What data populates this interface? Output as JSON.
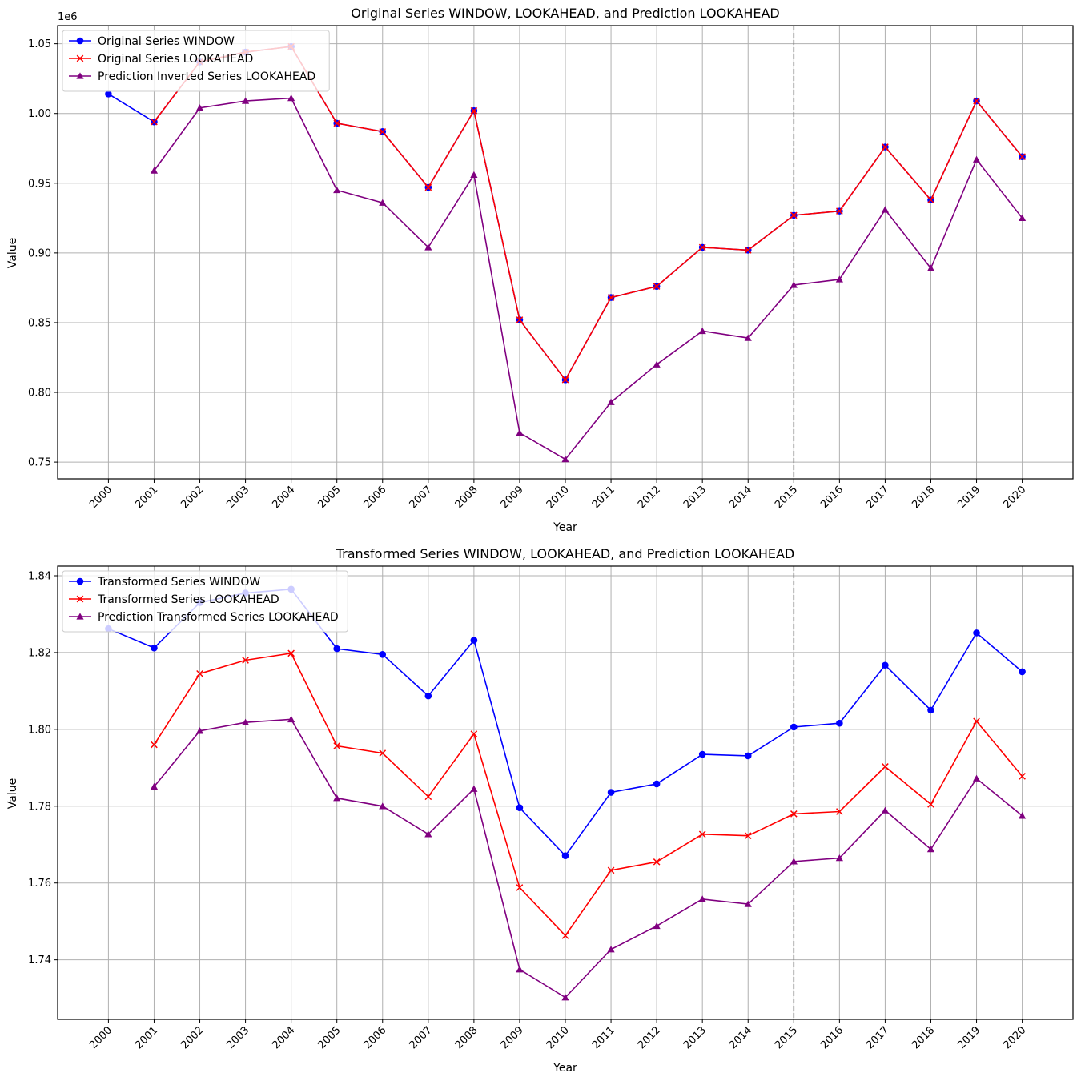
{
  "chart_data": [
    {
      "type": "line",
      "title": "Original Series WINDOW, LOOKAHEAD, and Prediction LOOKAHEAD",
      "xlabel": "Year",
      "ylabel": "Value",
      "y_offset_label": "1e6",
      "y_scale": 1000000,
      "x": [
        "2000",
        "2001",
        "2002",
        "2003",
        "2004",
        "2005",
        "2006",
        "2007",
        "2008",
        "2009",
        "2010",
        "2011",
        "2012",
        "2013",
        "2014",
        "2015",
        "2016",
        "2017",
        "2018",
        "2019",
        "2020"
      ],
      "ylim": [
        0.738,
        1.063
      ],
      "yticks": [
        0.75,
        0.8,
        0.85,
        0.9,
        0.95,
        1.0,
        1.05
      ],
      "ytick_labels": [
        "0.75",
        "0.80",
        "0.85",
        "0.90",
        "0.95",
        "1.00",
        "1.05"
      ],
      "grid": true,
      "legend_position": "upper-left",
      "vline": {
        "x": "2015",
        "style": "dashed",
        "color": "#808080"
      },
      "series": [
        {
          "name": "Original Series WINDOW",
          "color": "#0000ff",
          "marker": "circle",
          "values": [
            1014000,
            994000,
            1037000,
            1044000,
            1048000,
            993000,
            987000,
            947000,
            1002000,
            852000,
            809000,
            868000,
            876000,
            904000,
            902000,
            927000,
            930000,
            976000,
            938000,
            1009000,
            969000
          ]
        },
        {
          "name": "Original Series LOOKAHEAD",
          "color": "#ff0000",
          "marker": "x",
          "values": [
            null,
            994000,
            1037000,
            1044000,
            1048000,
            993000,
            987000,
            947000,
            1002000,
            852000,
            809000,
            868000,
            876000,
            904000,
            902000,
            927000,
            930000,
            976000,
            938000,
            1009000,
            969000
          ]
        },
        {
          "name": "Prediction Inverted Series LOOKAHEAD",
          "color": "#800080",
          "marker": "triangle",
          "values": [
            null,
            959000,
            1004000,
            1009000,
            1011000,
            945000,
            936000,
            904000,
            956000,
            771000,
            752000,
            793000,
            820000,
            844000,
            839000,
            877000,
            881000,
            931000,
            889000,
            967000,
            925000
          ]
        }
      ]
    },
    {
      "type": "line",
      "title": "Transformed Series WINDOW, LOOKAHEAD, and Prediction LOOKAHEAD",
      "xlabel": "Year",
      "ylabel": "Value",
      "y_offset_label": "",
      "y_scale": 1,
      "x": [
        "2000",
        "2001",
        "2002",
        "2003",
        "2004",
        "2005",
        "2006",
        "2007",
        "2008",
        "2009",
        "2010",
        "2011",
        "2012",
        "2013",
        "2014",
        "2015",
        "2016",
        "2017",
        "2018",
        "2019",
        "2020"
      ],
      "ylim": [
        1.7245,
        1.8425
      ],
      "yticks": [
        1.74,
        1.76,
        1.78,
        1.8,
        1.82,
        1.84
      ],
      "ytick_labels": [
        "1.74",
        "1.76",
        "1.78",
        "1.80",
        "1.82",
        "1.84"
      ],
      "grid": true,
      "legend_position": "upper-left",
      "vline": {
        "x": "2015",
        "style": "dashed",
        "color": "#808080"
      },
      "series": [
        {
          "name": "Transformed Series WINDOW",
          "color": "#0000ff",
          "marker": "circle",
          "values": [
            1.8262,
            1.8212,
            1.833,
            1.8355,
            1.8365,
            1.821,
            1.8195,
            1.8087,
            1.8232,
            1.7796,
            1.7671,
            1.7836,
            1.7858,
            1.7935,
            1.7931,
            1.8006,
            1.8016,
            1.8167,
            1.805,
            1.8251,
            1.815
          ]
        },
        {
          "name": "Transformed Series LOOKAHEAD",
          "color": "#ff0000",
          "marker": "x",
          "values": [
            null,
            1.796,
            1.8145,
            1.818,
            1.8198,
            1.7957,
            1.7938,
            1.7825,
            1.7988,
            1.7588,
            1.7463,
            1.7633,
            1.7655,
            1.7727,
            1.7723,
            1.778,
            1.7786,
            1.7903,
            1.7805,
            1.8021,
            1.7878
          ]
        },
        {
          "name": "Prediction Transformed Series LOOKAHEAD",
          "color": "#800080",
          "marker": "triangle",
          "values": [
            null,
            1.7851,
            1.7996,
            1.8018,
            1.8026,
            1.7821,
            1.78,
            1.7727,
            1.7845,
            1.7375,
            1.7302,
            1.7427,
            1.7488,
            1.7558,
            1.7545,
            1.7656,
            1.7665,
            1.7789,
            1.7688,
            1.7872,
            1.7775
          ]
        }
      ]
    }
  ]
}
